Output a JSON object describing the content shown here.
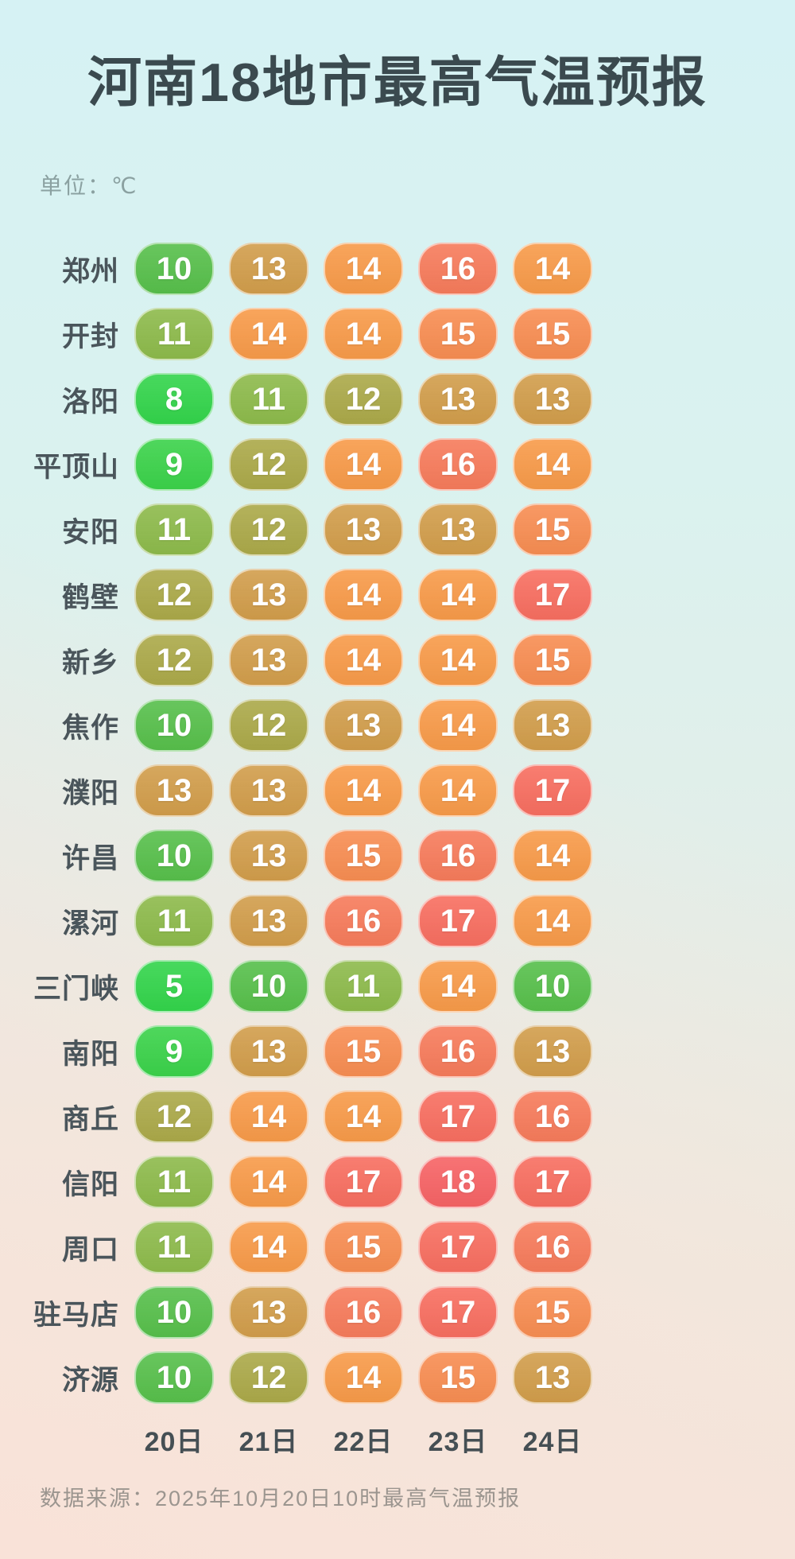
{
  "title": "河南18地市最高气温预报",
  "unit_label": "单位：℃",
  "dates": [
    "20日",
    "21日",
    "22日",
    "23日",
    "24日"
  ],
  "source": "数据来源：2025年10月20日10时最高气温预报",
  "chart_data": {
    "type": "heatmap",
    "title": "河南18地市最高气温预报",
    "unit": "℃",
    "columns": [
      "20日",
      "21日",
      "22日",
      "23日",
      "24日"
    ],
    "rows": [
      {
        "city": "郑州",
        "temps": [
          10,
          13,
          14,
          16,
          14
        ]
      },
      {
        "city": "开封",
        "temps": [
          11,
          14,
          14,
          15,
          15
        ]
      },
      {
        "city": "洛阳",
        "temps": [
          8,
          11,
          12,
          13,
          13
        ]
      },
      {
        "city": "平顶山",
        "temps": [
          9,
          12,
          14,
          16,
          14
        ]
      },
      {
        "city": "安阳",
        "temps": [
          11,
          12,
          13,
          13,
          15
        ]
      },
      {
        "city": "鹤壁",
        "temps": [
          12,
          13,
          14,
          14,
          17
        ]
      },
      {
        "city": "新乡",
        "temps": [
          12,
          13,
          14,
          14,
          15
        ]
      },
      {
        "city": "焦作",
        "temps": [
          10,
          12,
          13,
          14,
          13
        ]
      },
      {
        "city": "濮阳",
        "temps": [
          13,
          13,
          14,
          14,
          17
        ]
      },
      {
        "city": "许昌",
        "temps": [
          10,
          13,
          15,
          16,
          14
        ]
      },
      {
        "city": "漯河",
        "temps": [
          11,
          13,
          16,
          17,
          14
        ]
      },
      {
        "city": "三门峡",
        "temps": [
          5,
          10,
          11,
          14,
          10
        ]
      },
      {
        "city": "南阳",
        "temps": [
          9,
          13,
          15,
          16,
          13
        ]
      },
      {
        "city": "商丘",
        "temps": [
          12,
          14,
          14,
          17,
          16
        ]
      },
      {
        "city": "信阳",
        "temps": [
          11,
          14,
          17,
          18,
          17
        ]
      },
      {
        "city": "周口",
        "temps": [
          11,
          14,
          15,
          17,
          16
        ]
      },
      {
        "city": "驻马店",
        "temps": [
          10,
          13,
          16,
          17,
          15
        ]
      },
      {
        "city": "济源",
        "temps": [
          10,
          12,
          14,
          15,
          13
        ]
      }
    ],
    "color_scale": {
      "5": "#33d44b",
      "8": "#33d44b",
      "9": "#3bd24a",
      "10": "#57bf4b",
      "11": "#8dba4b",
      "12": "#aba949",
      "13": "#d19d4b",
      "14": "#f79a49",
      "15": "#f78d52",
      "16": "#f67b5b",
      "17": "#f76e60",
      "18": "#f66365"
    }
  }
}
